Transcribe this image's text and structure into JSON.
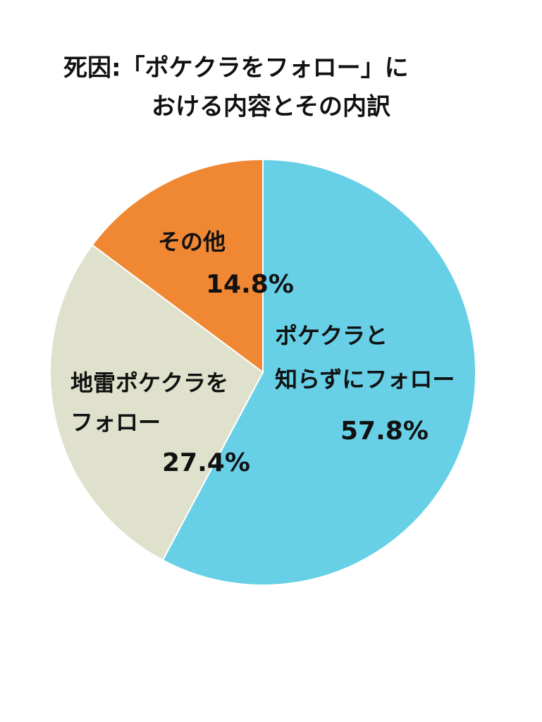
{
  "chart_data": {
    "type": "pie",
    "title": [
      "死因:「ポケクラをフォロー」に",
      "おける内容とその内訳"
    ],
    "categories": [
      [
        "ポケクラと",
        "知らずにフォロー"
      ],
      [
        "地雷ポケクラを",
        "フォロー"
      ],
      [
        "その他"
      ]
    ],
    "values": [
      57.8,
      27.4,
      14.8
    ],
    "value_labels": [
      "57.8%",
      "27.4%",
      "14.8%"
    ],
    "colors": [
      "#67d0e6",
      "#e0e1cc",
      "#f08732"
    ]
  }
}
